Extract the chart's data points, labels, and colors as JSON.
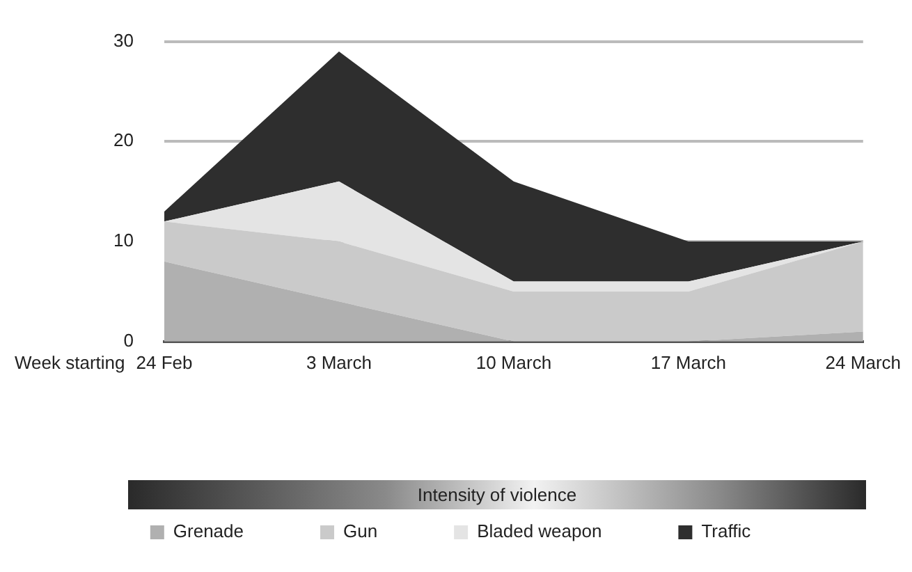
{
  "chart_data": {
    "type": "area",
    "stacked": true,
    "xlabel": "Week starting",
    "categories": [
      "24 Feb",
      "3 March",
      "10 March",
      "17 March",
      "24 March"
    ],
    "series": [
      {
        "name": "Grenade",
        "color": "#b0b0b0",
        "values": [
          8,
          4,
          0,
          0,
          1
        ]
      },
      {
        "name": "Gun",
        "color": "#cacaca",
        "values": [
          4,
          6,
          5,
          5,
          9
        ]
      },
      {
        "name": "Bladed weapon",
        "color": "#e4e4e4",
        "values": [
          0,
          6,
          1,
          1,
          0
        ]
      },
      {
        "name": "Traffic",
        "color": "#2e2e2e",
        "values": [
          1,
          13,
          10,
          4,
          0
        ]
      }
    ],
    "ylim": [
      0,
      30
    ],
    "yticks": [
      0,
      10,
      20,
      30
    ],
    "grid": "y",
    "legend": "bottom",
    "marker": "none",
    "annotations": [
      "Intensity of violence"
    ]
  }
}
